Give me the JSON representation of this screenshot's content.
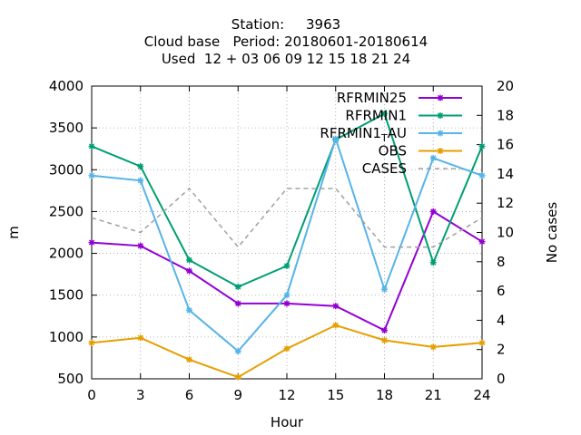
{
  "chart_data": {
    "type": "line",
    "title_lines": [
      "Station:     3963",
      "Cloud base   Period: 20180601-20180614",
      "Used  12 + 03 06 09 12 15 18 21 24"
    ],
    "xlabel": "Hour",
    "ylabel": "m",
    "y2label": "No cases",
    "x": [
      0,
      3,
      6,
      9,
      12,
      15,
      18,
      21,
      24
    ],
    "xlim": [
      0,
      24
    ],
    "ylim": [
      500,
      4000
    ],
    "y2lim": [
      0,
      20
    ],
    "xticks": [
      "0",
      "3",
      "6",
      "9",
      "12",
      "15",
      "18",
      "21",
      "24"
    ],
    "yticks": [
      "500",
      "1000",
      "1500",
      "2000",
      "2500",
      "3000",
      "3500",
      "4000"
    ],
    "y2ticks": [
      "0",
      "2",
      "4",
      "6",
      "8",
      "10",
      "12",
      "14",
      "16",
      "18",
      "20"
    ],
    "grid": true,
    "legend_position": "top-right",
    "series": [
      {
        "name": "RFRMIN25",
        "color": "#9400d3",
        "axis": "y",
        "style": "line-points",
        "values": [
          2130,
          2090,
          1790,
          1400,
          1400,
          1370,
          1080,
          2500,
          2140
        ]
      },
      {
        "name": "RFRMIN1",
        "color": "#009e73",
        "axis": "y",
        "style": "line-points",
        "values": [
          3280,
          3040,
          1920,
          1600,
          1850,
          3360,
          3670,
          1890,
          3280
        ]
      },
      {
        "name": "RFRMIN1_AU",
        "legend_main": "RFRMIN1",
        "legend_sub": "T",
        "legend_suffix": "AU",
        "color": "#56b4e9",
        "axis": "y",
        "style": "line-points",
        "values": [
          2930,
          2870,
          1320,
          830,
          1500,
          3370,
          1570,
          3140,
          2930
        ]
      },
      {
        "name": "OBS",
        "color": "#e69f00",
        "axis": "y",
        "style": "line-points",
        "values": [
          930,
          990,
          730,
          520,
          860,
          1140,
          960,
          880,
          930
        ]
      },
      {
        "name": "CASES",
        "color": "#a0a0a0",
        "axis": "y2",
        "style": "dashed",
        "values": [
          11,
          10,
          13,
          9,
          13,
          13,
          9,
          9,
          11
        ]
      }
    ]
  }
}
